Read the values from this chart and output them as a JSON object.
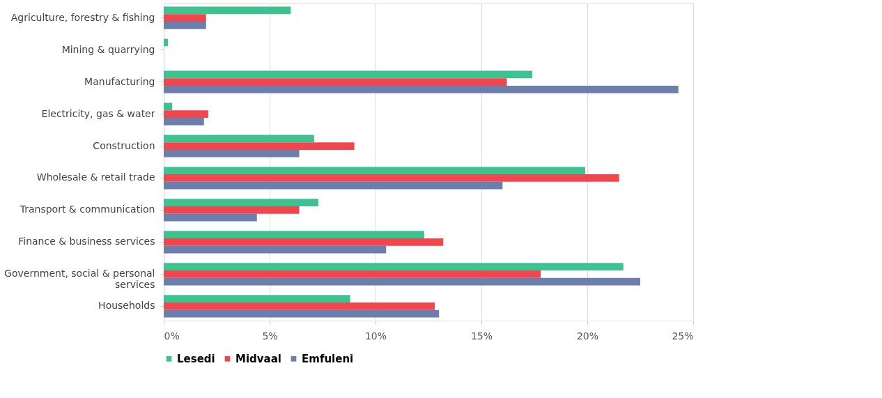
{
  "chart_data": {
    "type": "bar",
    "orientation": "horizontal",
    "categories": [
      "Agriculture, forestry & fishing",
      "Mining & quarrying",
      "Manufacturing",
      "Electricity, gas & water",
      "Construction",
      "Wholesale & retail trade",
      "Transport & communication",
      "Finance & business services",
      "Government, social & personal services",
      "Households"
    ],
    "series": [
      {
        "name": "Lesedi",
        "color": "#3ec28f",
        "values": [
          6.0,
          0.2,
          17.4,
          0.4,
          7.1,
          19.9,
          7.3,
          12.3,
          21.7,
          8.8
        ]
      },
      {
        "name": "Midvaal",
        "color": "#f0474f",
        "values": [
          2.0,
          0.0,
          16.2,
          2.1,
          9.0,
          21.5,
          6.4,
          13.2,
          17.8,
          12.8
        ]
      },
      {
        "name": "Emfuleni",
        "color": "#6b7fae",
        "values": [
          2.0,
          0.0,
          24.3,
          1.9,
          6.4,
          16.0,
          4.4,
          10.5,
          22.5,
          13.0
        ]
      }
    ],
    "xlim": [
      0,
      25
    ],
    "xticks": [
      {
        "value": 0,
        "label": "0%"
      },
      {
        "value": 5,
        "label": "5%"
      },
      {
        "value": 10,
        "label": "10%"
      },
      {
        "value": 15,
        "label": "15%"
      },
      {
        "value": 20,
        "label": "20%"
      },
      {
        "value": 25,
        "label": "25%"
      }
    ],
    "grid": "x",
    "legend": "bottom"
  }
}
